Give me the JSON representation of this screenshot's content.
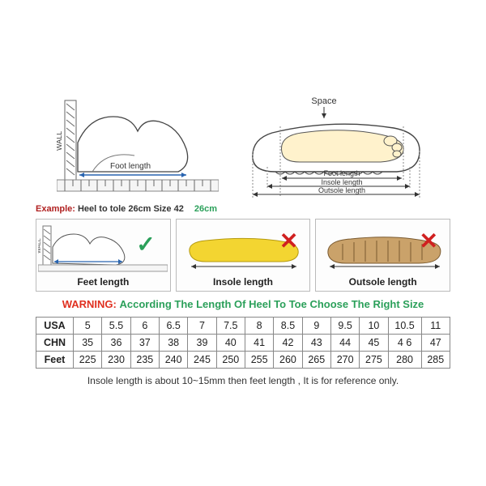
{
  "diagrams": {
    "left": {
      "wall_label": "WALL",
      "foot_length_label": "Foot length",
      "arrow_color": "#2864b0"
    },
    "right": {
      "space_label": "Space",
      "foot_length_label": "Foot length",
      "insole_label": "Insole length",
      "outsole_label": "Outsole length"
    }
  },
  "example": {
    "label": "Example:",
    "text": "Heel to tole 26cm Size 42",
    "green": "26cm"
  },
  "boxes": [
    {
      "caption": "Feet length",
      "mark": "check",
      "kind": "foot"
    },
    {
      "caption": "Insole length",
      "mark": "x",
      "kind": "insole"
    },
    {
      "caption": "Outsole length",
      "mark": "x",
      "kind": "outsole"
    }
  ],
  "warning": {
    "label": "WARNING:",
    "text": "According The Length Of Heel To Toe Choose The Right Size"
  },
  "size_table": {
    "rows": [
      {
        "head": "USA",
        "cells": [
          "5",
          "5.5",
          "6",
          "6.5",
          "7",
          "7.5",
          "8",
          "8.5",
          "9",
          "9.5",
          "10",
          "10.5",
          "11"
        ]
      },
      {
        "head": "CHN",
        "cells": [
          "35",
          "36",
          "37",
          "38",
          "39",
          "40",
          "41",
          "42",
          "43",
          "44",
          "45",
          "4 6",
          "47"
        ]
      },
      {
        "head": "Feet",
        "cells": [
          "225",
          "230",
          "235",
          "240",
          "245",
          "250",
          "255",
          "260",
          "265",
          "270",
          "275",
          "280",
          "285"
        ]
      }
    ],
    "col_count": 13
  },
  "footnote": "Insole length is about 10~15mm then feet length , It is for reference only.",
  "colors": {
    "green": "#2ba05a",
    "red": "#e03020",
    "insole_yellow": "#f3d531",
    "outsole_tan": "#caa26a",
    "foot_cream": "#fff2cc",
    "line_gray": "#666666",
    "box_border": "#bbbbbb"
  }
}
